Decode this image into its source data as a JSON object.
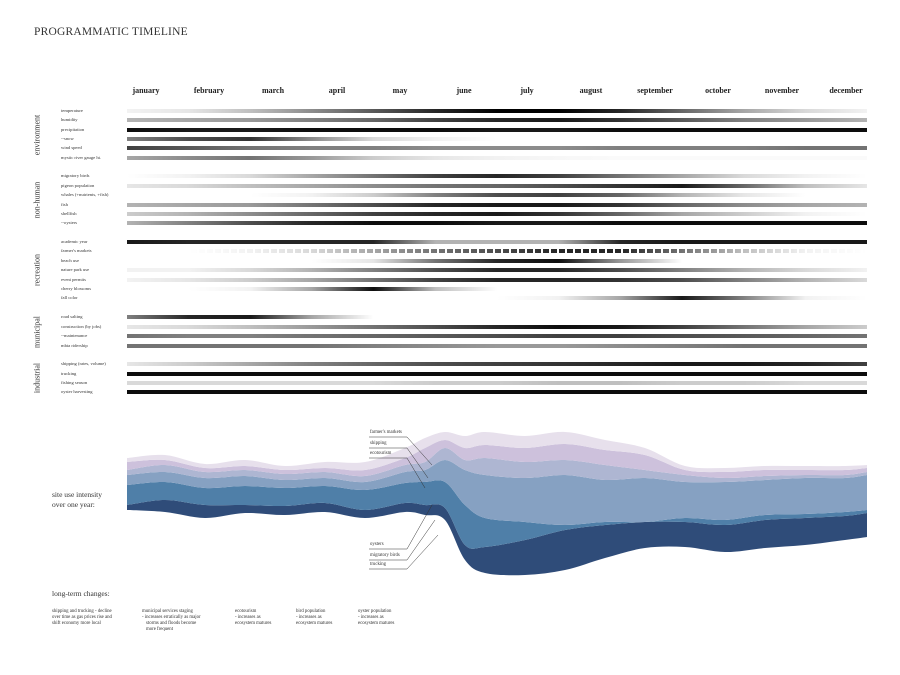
{
  "title": "PROGRAMMATIC TIMELINE",
  "months": [
    "january",
    "february",
    "march",
    "april",
    "may",
    "june",
    "july",
    "august",
    "september",
    "october",
    "november",
    "december"
  ],
  "categories": [
    {
      "label": "environment",
      "rows": [
        {
          "label": "temperature",
          "profile": [
            0.05,
            0.1,
            0.25,
            0.45,
            0.65,
            0.85,
            1,
            1,
            0.85,
            0.6,
            0.35,
            0.15,
            0.05
          ],
          "style": "solid"
        },
        {
          "label": "humidity",
          "profile": [
            0.3,
            0.35,
            0.4,
            0.5,
            0.6,
            0.75,
            0.85,
            0.9,
            0.8,
            0.65,
            0.5,
            0.4,
            0.3
          ],
          "style": "solid"
        },
        {
          "label": "precipitation",
          "profile": [
            0.95,
            0.9,
            0.9,
            0.95,
            0.95,
            0.95,
            0.9,
            0.9,
            0.95,
            0.95,
            0.95,
            0.95,
            0.95
          ],
          "style": "solid"
        },
        {
          "label": "--snow",
          "profile": [
            0.5,
            0.7,
            0.8,
            0.45,
            0.15,
            0.05,
            0,
            0,
            0,
            0,
            0,
            0,
            0
          ],
          "style": "solid"
        },
        {
          "label": "wind speed",
          "profile": [
            0.75,
            0.65,
            0.55,
            0.5,
            0.5,
            0.45,
            0.45,
            0.45,
            0.5,
            0.5,
            0.5,
            0.55,
            0.55
          ],
          "style": "solid"
        },
        {
          "label": "mystic river gauge ht.",
          "profile": [
            0.35,
            0.45,
            0.55,
            0.4,
            0.2,
            0.1,
            0.05,
            0.03,
            0.02,
            0.02,
            0.02,
            0.02,
            0.02
          ],
          "style": "solid"
        }
      ]
    },
    {
      "label": "non-human",
      "rows": [
        {
          "label": "migratory birds",
          "profile": [
            0,
            0.05,
            0.15,
            0.35,
            0.55,
            0.75,
            0.85,
            0.75,
            0.55,
            0.35,
            0.15,
            0.05,
            0
          ],
          "style": "solid"
        },
        {
          "label": "pigeon population",
          "profile": [
            0.1,
            0.15,
            0.25,
            0.35,
            0.45,
            0.55,
            0.6,
            0.7,
            0.8,
            0.9,
            0.6,
            0.25,
            0.1
          ],
          "style": "solid"
        },
        {
          "label": "whales (+nutrients, +fish)",
          "profile": [
            0,
            0,
            0,
            0.05,
            0.2,
            0.5,
            0.7,
            0.75,
            0.6,
            0.3,
            0.1,
            0,
            0
          ],
          "style": "solid"
        },
        {
          "label": "fish",
          "profile": [
            0.3,
            0.35,
            0.4,
            0.55,
            0.7,
            0.85,
            0.9,
            0.9,
            0.8,
            0.6,
            0.45,
            0.35,
            0.3
          ],
          "style": "solid"
        },
        {
          "label": "shellfish",
          "profile": [
            0.2,
            0.3,
            0.45,
            0.6,
            0.75,
            0.85,
            0.9,
            0.8,
            0.6,
            0.35,
            0.2,
            0.05,
            0
          ],
          "style": "solid"
        },
        {
          "label": "--oysters",
          "profile": [
            0.3,
            0.5,
            0.7,
            0.85,
            0.95,
            0.95,
            0.9,
            0.9,
            0.95,
            0.95,
            0.95,
            0.95,
            0.95
          ],
          "style": "solid"
        }
      ]
    },
    {
      "label": "recreation",
      "rows": [
        {
          "label": "academic year",
          "profile": [
            0.9,
            0.85,
            0.85,
            0.85,
            0.85,
            0.3,
            0.3,
            0.3,
            0.85,
            0.9,
            0.9,
            0.9,
            0.9
          ],
          "style": "solid"
        },
        {
          "label": "farmer's markets",
          "profile": [
            0,
            0,
            0.05,
            0.15,
            0.35,
            0.55,
            0.7,
            0.85,
            0.85,
            0.55,
            0.25,
            0.05,
            0
          ],
          "style": "dashed"
        },
        {
          "label": "beach use",
          "profile": [
            0,
            0,
            0,
            0,
            0.1,
            0.55,
            0.85,
            0.95,
            0.4,
            0,
            0,
            0,
            0
          ],
          "style": "solid"
        },
        {
          "label": "nature park use",
          "profile": [
            0.05,
            0.05,
            0.15,
            0.3,
            0.5,
            0.7,
            0.85,
            0.85,
            0.7,
            0.5,
            0.3,
            0.15,
            0.05
          ],
          "style": "solid"
        },
        {
          "label": "event permits",
          "profile": [
            0.05,
            0.1,
            0.2,
            0.35,
            0.55,
            0.75,
            0.85,
            0.85,
            0.8,
            0.7,
            0.5,
            0.3,
            0.15
          ],
          "style": "solid"
        },
        {
          "label": "cherry blossoms",
          "profile": [
            0,
            0,
            0.05,
            0.35,
            0.95,
            0.25,
            0,
            0,
            0,
            0,
            0,
            0,
            0
          ],
          "style": "solid"
        },
        {
          "label": "fall color",
          "profile": [
            0,
            0,
            0,
            0,
            0,
            0,
            0,
            0.05,
            0.35,
            0.9,
            0.5,
            0.05,
            0
          ],
          "style": "solid"
        }
      ]
    },
    {
      "label": "municipal",
      "rows": [
        {
          "label": "road salting",
          "profile": [
            0.5,
            0.85,
            0.9,
            0.35,
            0,
            0,
            0,
            0,
            0,
            0,
            0,
            0,
            0
          ],
          "style": "solid"
        },
        {
          "label": "construction (by jobs)",
          "profile": [
            0.1,
            0.15,
            0.25,
            0.4,
            0.55,
            0.7,
            0.85,
            0.95,
            0.9,
            0.75,
            0.55,
            0.35,
            0.2
          ],
          "style": "solid"
        },
        {
          "label": "--maintenance",
          "profile": [
            0.55,
            0.5,
            0.5,
            0.55,
            0.6,
            0.65,
            0.7,
            0.75,
            0.75,
            0.7,
            0.65,
            0.6,
            0.55
          ],
          "style": "solid"
        },
        {
          "label": "mbta ridership",
          "profile": [
            0.55,
            0.55,
            0.55,
            0.55,
            0.5,
            0.45,
            0.4,
            0.4,
            0.45,
            0.5,
            0.55,
            0.55,
            0.55
          ],
          "style": "solid"
        }
      ]
    },
    {
      "label": "industrial",
      "rows": [
        {
          "label": "shipping (rates, volume)",
          "profile": [
            0.1,
            0.2,
            0.35,
            0.5,
            0.6,
            0.7,
            0.75,
            0.8,
            0.85,
            0.9,
            0.9,
            0.85,
            0.75
          ],
          "style": "solid"
        },
        {
          "label": "trucking",
          "profile": [
            0.95,
            0.95,
            0.95,
            0.95,
            0.95,
            0.95,
            0.95,
            0.95,
            0.95,
            0.95,
            0.95,
            0.95,
            0.95
          ],
          "style": "solid"
        },
        {
          "label": "fishing season",
          "profile": [
            0.15,
            0.15,
            0.15,
            0.15,
            0.15,
            0.2,
            0.2,
            0.25,
            0.25,
            0.2,
            0.2,
            0.15,
            0.15
          ],
          "style": "solid"
        },
        {
          "label": "oyster harvesting",
          "profile": [
            0.95,
            0.95,
            0.95,
            0.95,
            0.95,
            0.95,
            0.95,
            0.95,
            0.95,
            0.95,
            0.95,
            0.95,
            0.95
          ],
          "style": "solid"
        }
      ]
    }
  ],
  "stream": {
    "title_line1": "site use intensity",
    "title_line2": "over one year:",
    "labels_top": [
      "farmer's markets",
      "shipping",
      "ecotourism"
    ],
    "labels_bottom": [
      "oysters",
      "migratory birds",
      "trucking"
    ],
    "layer_colors": [
      "#2f4c79",
      "#4f7fa8",
      "#86a1c2",
      "#aeb6d2",
      "#cdc1dc",
      "#e7e0ec"
    ]
  },
  "long_term": {
    "title": "long-term changes:",
    "notes": [
      {
        "lines": [
          "shipping and trucking - decline",
          "over time as gas prices rise and",
          "shift economy more local"
        ]
      },
      {
        "lines": [
          "municipal services staging",
          "- increases erratically as major",
          "storms and floods become",
          "more frequent"
        ]
      },
      {
        "lines": [
          "ecotourism",
          "- increases as",
          "ecosystem matures"
        ]
      },
      {
        "lines": [
          "bird population",
          "- increases as",
          "ecosystem matures"
        ]
      },
      {
        "lines": [
          "oyster population",
          "- increases as",
          "ecosystem matures"
        ]
      }
    ]
  }
}
